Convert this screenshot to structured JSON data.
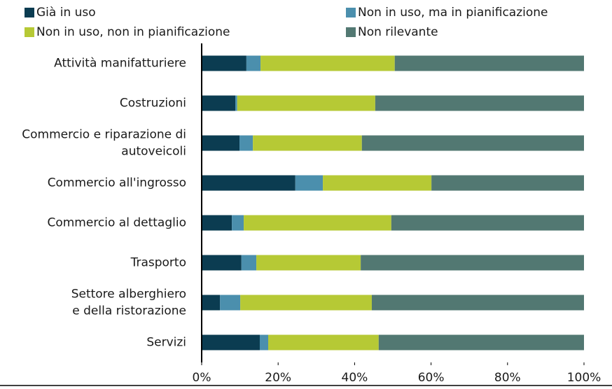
{
  "chart_data": {
    "type": "stacked_barh",
    "categories": [
      [
        "Attività manifatturiere"
      ],
      [
        "Costruzioni"
      ],
      [
        "Commercio e riparazione di",
        "autoveicoli"
      ],
      [
        "Commercio all'ingrosso"
      ],
      [
        "Commercio al dettaglio"
      ],
      [
        "Trasporto"
      ],
      [
        "Settore alberghiero",
        "e della ristorazione"
      ],
      [
        "Servizi"
      ]
    ],
    "series": [
      {
        "name": "Già in uso",
        "color": "#0b3c51",
        "values": [
          11.7,
          8.8,
          9.9,
          24.5,
          7.9,
          10.4,
          4.8,
          15.2
        ]
      },
      {
        "name": "Non in uso, ma in pianificazione",
        "color": "#4b8fad",
        "values": [
          3.7,
          0.5,
          3.5,
          7.2,
          3.1,
          3.9,
          5.3,
          2.2
        ]
      },
      {
        "name": "Non in uso, non in pianificazione",
        "color": "#b6c935",
        "values": [
          35.1,
          36.1,
          28.5,
          28.4,
          38.6,
          27.3,
          34.4,
          28.9
        ]
      },
      {
        "name": "Non rilevante",
        "color": "#527872",
        "values": [
          49.5,
          54.6,
          58.1,
          39.9,
          50.4,
          58.4,
          55.5,
          53.7
        ]
      }
    ],
    "xlim": [
      0,
      100
    ],
    "xticks": [
      {
        "value": 0,
        "label": "0%"
      },
      {
        "value": 20,
        "label": "20%"
      },
      {
        "value": 40,
        "label": "40%"
      },
      {
        "value": 60,
        "label": "60%"
      },
      {
        "value": 80,
        "label": "80%"
      },
      {
        "value": 100,
        "label": "100%"
      }
    ]
  }
}
